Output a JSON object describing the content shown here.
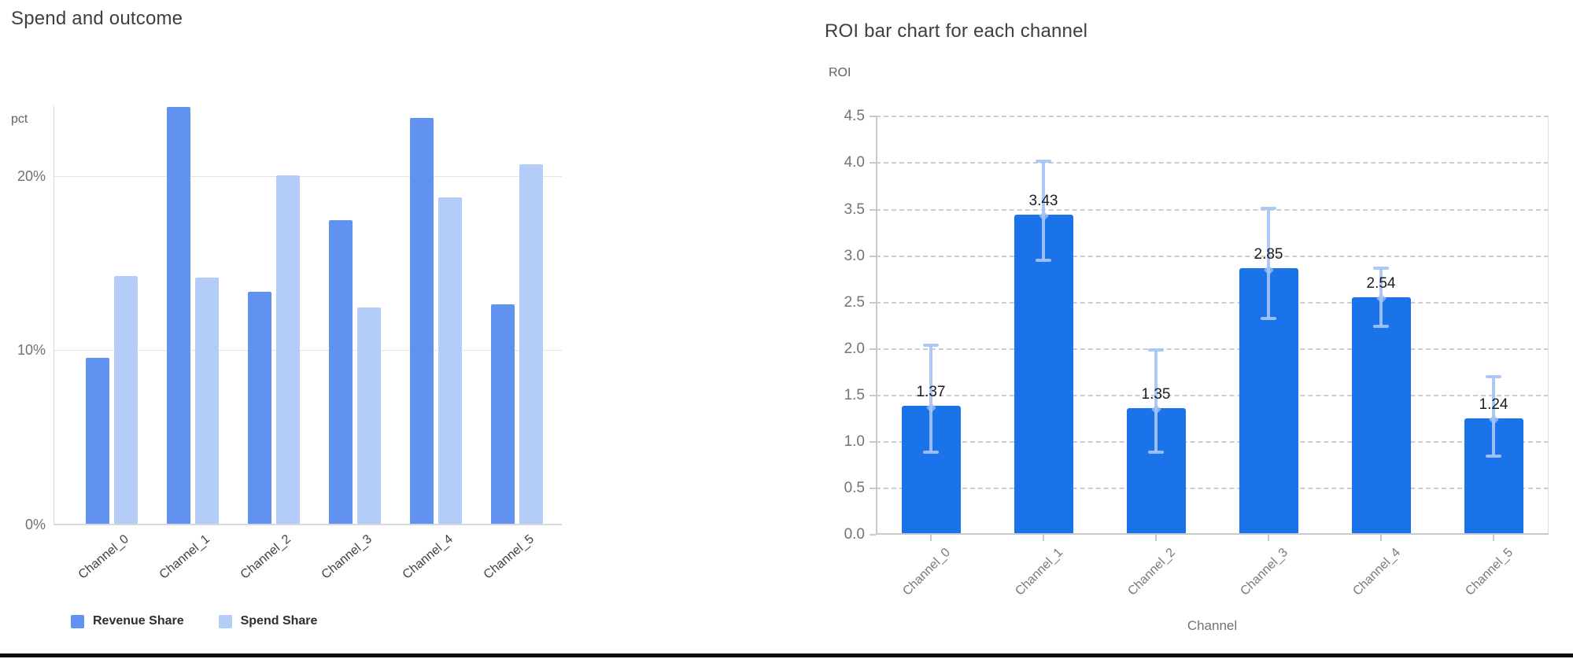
{
  "chart_data": [
    {
      "id": "spend-outcome",
      "type": "bar",
      "title": "Spend and outcome",
      "ylabel": "pct",
      "xlabel": "",
      "categories": [
        "Channel_0",
        "Channel_1",
        "Channel_2",
        "Channel_3",
        "Channel_4",
        "Channel_5"
      ],
      "series": [
        {
          "name": "Revenue Share",
          "color": "#6292f0",
          "values": [
            9.5,
            23.9,
            13.3,
            17.4,
            23.3,
            12.6
          ]
        },
        {
          "name": "Spend Share",
          "color": "#b3cdf8",
          "values": [
            14.2,
            14.1,
            20.0,
            12.4,
            18.7,
            20.6
          ]
        }
      ],
      "ylim": [
        0,
        24
      ],
      "yticks": [
        {
          "v": 0,
          "label": "0%"
        },
        {
          "v": 10,
          "label": "10%"
        },
        {
          "v": 20,
          "label": "20%"
        }
      ],
      "grid": "solid-horizontal",
      "legend_position": "bottom-left"
    },
    {
      "id": "roi-by-channel",
      "type": "bar",
      "title": "ROI bar chart for each channel",
      "ylabel": "ROI",
      "xlabel": "Channel",
      "categories": [
        "Channel_0",
        "Channel_1",
        "Channel_2",
        "Channel_3",
        "Channel_4",
        "Channel_5"
      ],
      "series": [
        {
          "name": "ROI",
          "color": "#1a73e8",
          "values": [
            1.37,
            3.43,
            1.35,
            2.85,
            2.54,
            1.24
          ]
        }
      ],
      "value_labels": [
        "1.37",
        "3.43",
        "1.35",
        "2.85",
        "2.54",
        "1.24"
      ],
      "error_bars": {
        "color": "#a6c3f6",
        "low": [
          0.89,
          2.95,
          0.89,
          2.33,
          2.24,
          0.85
        ],
        "high": [
          2.04,
          4.02,
          1.99,
          3.51,
          2.87,
          1.7
        ]
      },
      "ylim": [
        0,
        4.52
      ],
      "yticks": [
        {
          "v": 0.0,
          "label": "0.0"
        },
        {
          "v": 0.5,
          "label": "0.5"
        },
        {
          "v": 1.0,
          "label": "1.0"
        },
        {
          "v": 1.5,
          "label": "1.5"
        },
        {
          "v": 2.0,
          "label": "2.0"
        },
        {
          "v": 2.5,
          "label": "2.5"
        },
        {
          "v": 3.0,
          "label": "3.0"
        },
        {
          "v": 3.5,
          "label": "3.5"
        },
        {
          "v": 4.0,
          "label": "4.0"
        },
        {
          "v": 4.5,
          "label": "4.5"
        }
      ],
      "grid": "dashed-horizontal",
      "legend_position": "none"
    }
  ],
  "ui": {
    "background_color": "#ffffff",
    "bottom_rule_color": "#0b0b0b",
    "text_colors": {
      "title": "#3c4043",
      "axis_unit": "#5f6368",
      "tick": "#707478",
      "value_label": "#1b1d1f"
    }
  }
}
